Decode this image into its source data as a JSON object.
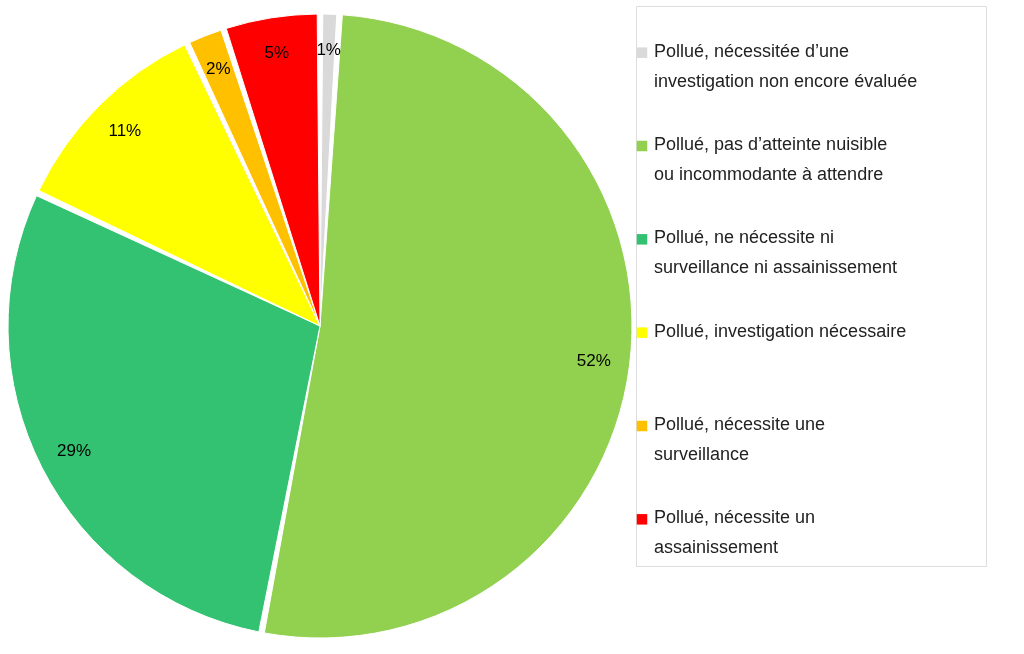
{
  "chart_data": {
    "type": "pie",
    "categories": [
      "Pollué, nécessitée d’une investigation non encore évaluée",
      "Pollué, pas d’atteinte nuisible ou incommodante à attendre",
      "Pollué, ne nécessite ni surveillance ni assainissement",
      "Pollué, investigation nécessaire",
      "Pollué, nécessite une surveillance",
      "Pollué, nécessite un assainissement"
    ],
    "values": [
      1,
      52,
      29,
      11,
      2,
      5
    ],
    "colors": [
      "#d9d9d9",
      "#92d050",
      "#33c172",
      "#ffff00",
      "#ffc000",
      "#ff0000"
    ],
    "value_labels": [
      "1%",
      "52%",
      "29%",
      "11%",
      "2%",
      "5%"
    ],
    "legend": "right"
  }
}
